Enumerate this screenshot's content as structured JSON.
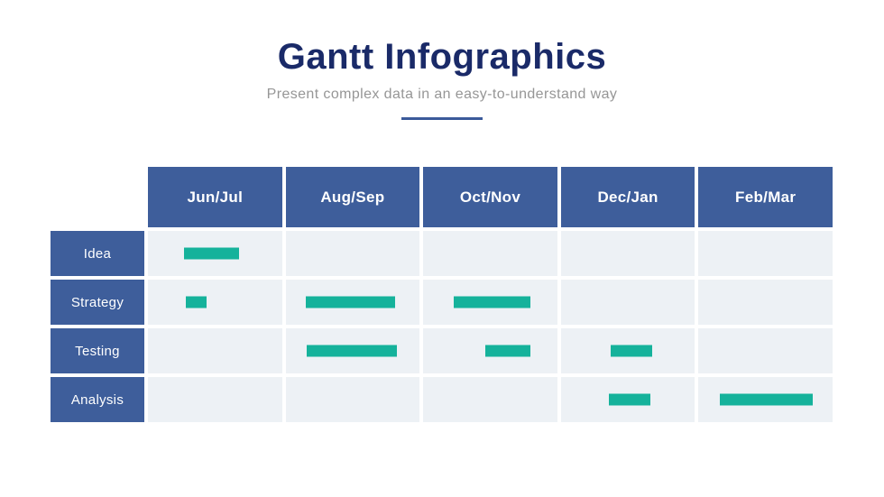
{
  "header": {
    "title": "Gantt Infographics",
    "subtitle": "Present complex data in an easy-to-understand way"
  },
  "colors": {
    "title_navy": "#1a2a68",
    "subtitle_gray": "#969696",
    "divider_blue": "#3b5a9a",
    "header_blue": "#3e5e9b",
    "cell_bg": "#edf1f5",
    "bar_teal": "#15b29b",
    "header_text": "#ffffff"
  },
  "chart_data": {
    "type": "table",
    "subtype": "gantt",
    "title": "Gantt Infographics",
    "columns": [
      "Jun/Jul",
      "Aug/Sep",
      "Oct/Nov",
      "Dec/Jan",
      "Feb/Mar"
    ],
    "rows": [
      "Idea",
      "Strategy",
      "Testing",
      "Analysis"
    ],
    "grid": "cells shaded light blue-gray, 4px white gaps, blue header row and blue row-label column",
    "bars": [
      {
        "row": "Idea",
        "col": "Jun/Jul",
        "left_pct": 27,
        "width_pct": 41
      },
      {
        "row": "Strategy",
        "col": "Jun/Jul",
        "left_pct": 28,
        "width_pct": 16
      },
      {
        "row": "Strategy",
        "col": "Aug/Sep",
        "left_pct": 15,
        "width_pct": 67
      },
      {
        "row": "Strategy",
        "col": "Oct/Nov",
        "left_pct": 23,
        "width_pct": 57
      },
      {
        "row": "Testing",
        "col": "Aug/Sep",
        "left_pct": 16,
        "width_pct": 67
      },
      {
        "row": "Testing",
        "col": "Oct/Nov",
        "left_pct": 46,
        "width_pct": 34
      },
      {
        "row": "Testing",
        "col": "Dec/Jan",
        "left_pct": 37,
        "width_pct": 31
      },
      {
        "row": "Analysis",
        "col": "Dec/Jan",
        "left_pct": 36,
        "width_pct": 31
      },
      {
        "row": "Analysis",
        "col": "Feb/Mar",
        "left_pct": 16,
        "width_pct": 69
      }
    ]
  }
}
